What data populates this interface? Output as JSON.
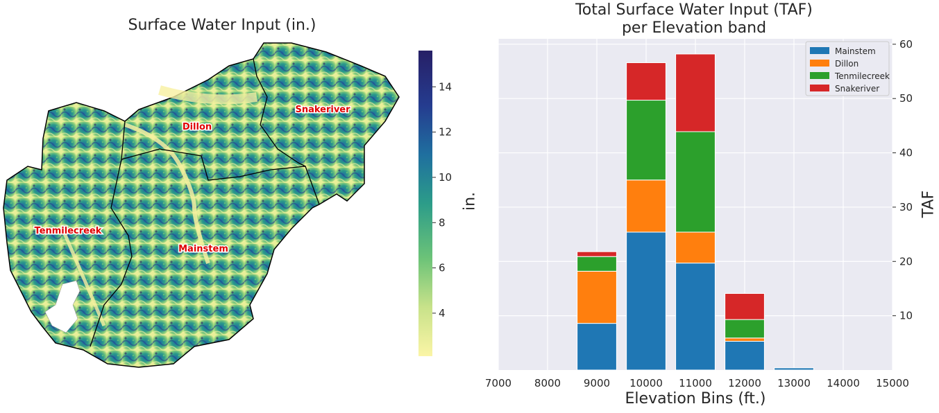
{
  "map": {
    "title": "Surface Water Input (in.)",
    "regions": [
      {
        "name": "Dillon"
      },
      {
        "name": "Snakeriver"
      },
      {
        "name": "Tenmilecreek"
      },
      {
        "name": "Mainstem"
      }
    ],
    "colorbar": {
      "ticks": [
        "4",
        "6",
        "8",
        "10",
        "12",
        "14"
      ],
      "tick_values": [
        4,
        6,
        8,
        10,
        12,
        14
      ],
      "range": [
        2.1,
        15.6
      ],
      "colormap": [
        "#fbf5a6",
        "#c8e28a",
        "#6cc378",
        "#2c9c89",
        "#1f6f9f",
        "#253c8f",
        "#261f66"
      ]
    },
    "ylabel": "in."
  },
  "chart_data": {
    "type": "bar",
    "stacked": true,
    "title_line1": "Total Surface Water Input (TAF)",
    "title_line2": "per Elevation band",
    "xlabel": "Elevation Bins (ft.)",
    "ylabel": "TAF",
    "xlim": [
      7000,
      15000
    ],
    "ylim": [
      0,
      61
    ],
    "x_ticks": [
      "7000",
      "8000",
      "9000",
      "10000",
      "11000",
      "12000",
      "13000",
      "14000",
      "15000"
    ],
    "x_tick_values": [
      7000,
      8000,
      9000,
      10000,
      11000,
      12000,
      13000,
      14000,
      15000
    ],
    "y_ticks": [
      "10",
      "20",
      "30",
      "40",
      "50",
      "60"
    ],
    "y_tick_values": [
      10,
      20,
      30,
      40,
      50,
      60
    ],
    "grid": true,
    "legend_position": "top-right",
    "x": [
      9000,
      10000,
      11000,
      12000,
      13000
    ],
    "series": [
      {
        "name": "Mainstem",
        "color": "#1f77b4",
        "values": [
          8.6,
          25.4,
          19.7,
          5.3,
          0.4
        ]
      },
      {
        "name": "Dillon",
        "color": "#ff7f0e",
        "values": [
          9.6,
          9.6,
          5.7,
          0.6,
          0.0
        ]
      },
      {
        "name": "Tenmilecreek",
        "color": "#2ca02c",
        "values": [
          2.7,
          14.7,
          18.5,
          3.4,
          0.0
        ]
      },
      {
        "name": "Snakeriver",
        "color": "#d62728",
        "values": [
          0.9,
          6.9,
          14.3,
          4.8,
          0.0
        ]
      }
    ]
  }
}
